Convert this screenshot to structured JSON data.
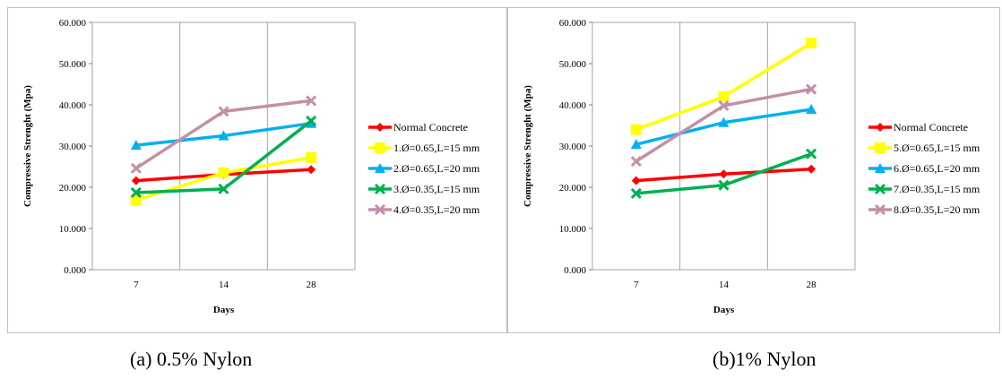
{
  "chart_data": [
    {
      "type": "line",
      "categories": [
        "7",
        "14",
        "28"
      ],
      "xlabel": "Days",
      "ylabel": "Compressive Strenght (Mpa)",
      "ylim": [
        0,
        60
      ],
      "yticks": [
        "0.000",
        "10.000",
        "20.000",
        "30.000",
        "40.000",
        "50.000",
        "60.000"
      ],
      "grid": "vertical",
      "legend": "right",
      "series": [
        {
          "name": "Normal Concrete",
          "values": [
            21.6,
            23.1,
            24.3
          ],
          "color": "#ff0000",
          "marker": "diamond"
        },
        {
          "name": "1.Ø=0.65,L=15 mm",
          "values": [
            16.9,
            23.5,
            27.2
          ],
          "color": "#ffff00",
          "marker": "square"
        },
        {
          "name": "2.Ø=0.65,L=20 mm",
          "values": [
            30.2,
            32.5,
            35.5
          ],
          "color": "#00b0f0",
          "marker": "triangle"
        },
        {
          "name": "3.Ø=0.35,L=15 mm",
          "values": [
            18.7,
            19.6,
            36.1
          ],
          "color": "#00b050",
          "marker": "x"
        },
        {
          "name": "4.Ø=0.35,L=20 mm",
          "values": [
            24.6,
            38.4,
            41.0
          ],
          "color": "#c390a8",
          "marker": "x"
        }
      ]
    },
    {
      "type": "line",
      "categories": [
        "7",
        "14",
        "28"
      ],
      "xlabel": "Days",
      "ylabel": "Compressive Strenght (Mpa)",
      "ylim": [
        0,
        60
      ],
      "yticks": [
        "0.000",
        "10.000",
        "20.000",
        "30.000",
        "40.000",
        "50.000",
        "60.000"
      ],
      "grid": "vertical",
      "legend": "right",
      "series": [
        {
          "name": "Normal Concrete",
          "values": [
            21.6,
            23.2,
            24.4
          ],
          "color": "#ff0000",
          "marker": "diamond"
        },
        {
          "name": "5.Ø=0.65,L=15 mm",
          "values": [
            34.0,
            42.0,
            55.0
          ],
          "color": "#ffff00",
          "marker": "square"
        },
        {
          "name": "6.Ø=0.65,L=20 mm",
          "values": [
            30.4,
            35.7,
            38.9
          ],
          "color": "#00b0f0",
          "marker": "triangle"
        },
        {
          "name": "7.Ø=0.35,L=15 mm",
          "values": [
            18.5,
            20.5,
            28.1
          ],
          "color": "#00b050",
          "marker": "x"
        },
        {
          "name": "8.Ø=0.35,L=20 mm",
          "values": [
            26.3,
            39.8,
            43.8
          ],
          "color": "#c390a8",
          "marker": "x"
        }
      ]
    }
  ],
  "captions": [
    "(a) 0.5% Nylon",
    "(b)1% Nylon"
  ]
}
